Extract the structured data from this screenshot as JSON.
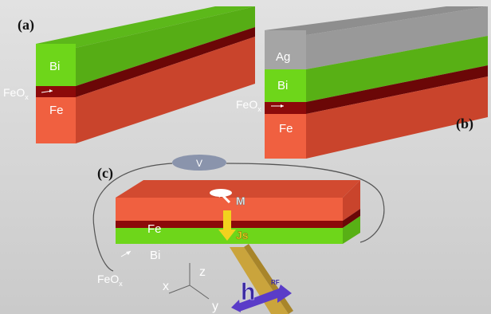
{
  "panels": {
    "a": {
      "tag": "(a)",
      "layers": {
        "top": "Bi",
        "interface_main": "FeO",
        "interface_sub": "x",
        "bottom": "Fe"
      }
    },
    "b": {
      "tag": "(b)",
      "layers": {
        "top": "Ag",
        "middle": "Bi",
        "interface_main": "FeO",
        "interface_sub": "x",
        "bottom": "Fe"
      }
    },
    "c": {
      "tag": "(c)",
      "layers": {
        "top": "Fe",
        "bottom": "Bi",
        "interface_main": "FeO",
        "interface_sub": "x"
      },
      "voltmeter": "V",
      "magnetization": "M",
      "spin_current": "Js",
      "rf_field": "h",
      "rf_label": "RF",
      "axes": {
        "x": "x",
        "y": "y",
        "z": "z"
      }
    }
  },
  "colors": {
    "background": "#d8d8d8",
    "fe": "#f06040",
    "feox": "#8c0a0a",
    "bi": "#6ed61a",
    "ag": "#a5a5a5",
    "strip": "#caa43c",
    "rf_arrow": "#5a3cc8",
    "voltmeter": "#8a94ac"
  }
}
